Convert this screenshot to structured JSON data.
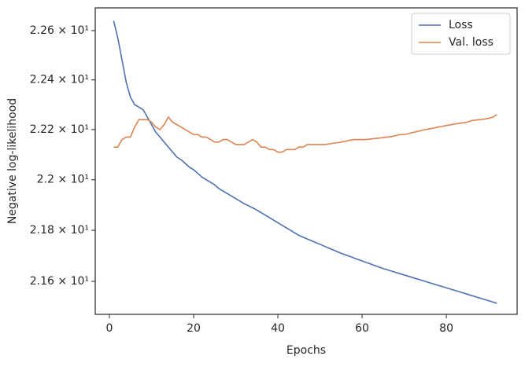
{
  "chart_data": {
    "type": "line",
    "xlabel": "Epochs",
    "ylabel": "Negative log-likelihood",
    "yscale": "log",
    "legend": "upper right",
    "grid": false,
    "x": [
      1,
      2,
      3,
      4,
      5,
      6,
      7,
      8,
      9,
      10,
      11,
      12,
      13,
      14,
      15,
      16,
      17,
      18,
      19,
      20,
      21,
      22,
      23,
      24,
      25,
      26,
      27,
      28,
      29,
      30,
      31,
      32,
      33,
      34,
      35,
      36,
      37,
      38,
      39,
      40,
      41,
      42,
      43,
      44,
      45,
      46,
      47,
      48,
      49,
      50,
      51,
      52,
      53,
      54,
      55,
      56,
      57,
      58,
      59,
      60,
      61,
      62,
      63,
      64,
      65,
      66,
      67,
      68,
      69,
      70,
      71,
      72,
      73,
      74,
      75,
      76,
      77,
      78,
      79,
      80,
      81,
      82,
      83,
      84,
      85,
      86,
      87,
      88,
      89,
      90,
      91,
      92
    ],
    "series": [
      {
        "name": "Loss",
        "color": "#4c72b0",
        "values": [
          22.64,
          22.57,
          22.48,
          22.39,
          22.33,
          22.3,
          22.29,
          22.28,
          22.25,
          22.22,
          22.19,
          22.17,
          22.15,
          22.13,
          22.11,
          22.09,
          22.08,
          22.065,
          22.05,
          22.04,
          22.025,
          22.01,
          22.0,
          21.99,
          21.98,
          21.965,
          21.955,
          21.945,
          21.935,
          21.925,
          21.915,
          21.905,
          21.897,
          21.889,
          21.88,
          21.87,
          21.86,
          21.85,
          21.84,
          21.83,
          21.82,
          21.81,
          21.8,
          21.79,
          21.78,
          21.773,
          21.766,
          21.759,
          21.752,
          21.745,
          21.738,
          21.731,
          21.724,
          21.717,
          21.71,
          21.704,
          21.698,
          21.692,
          21.686,
          21.68,
          21.674,
          21.668,
          21.662,
          21.656,
          21.65,
          21.645,
          21.64,
          21.635,
          21.63,
          21.625,
          21.62,
          21.615,
          21.61,
          21.605,
          21.6,
          21.595,
          21.59,
          21.585,
          21.58,
          21.575,
          21.57,
          21.565,
          21.56,
          21.555,
          21.55,
          21.545,
          21.54,
          21.535,
          21.53,
          21.525,
          21.52,
          21.515
        ]
      },
      {
        "name": "Val. loss",
        "color": "#dd8452",
        "values": [
          22.13,
          22.13,
          22.16,
          22.17,
          22.17,
          22.21,
          22.24,
          22.24,
          22.24,
          22.23,
          22.21,
          22.2,
          22.22,
          22.25,
          22.23,
          22.22,
          22.21,
          22.2,
          22.19,
          22.18,
          22.18,
          22.17,
          22.17,
          22.16,
          22.15,
          22.15,
          22.16,
          22.16,
          22.15,
          22.14,
          22.14,
          22.14,
          22.15,
          22.16,
          22.15,
          22.13,
          22.13,
          22.12,
          22.12,
          22.11,
          22.11,
          22.12,
          22.12,
          22.12,
          22.13,
          22.13,
          22.14,
          22.14,
          22.14,
          22.14,
          22.14,
          22.142,
          22.145,
          22.147,
          22.15,
          22.153,
          22.157,
          22.16,
          22.16,
          22.16,
          22.16,
          22.162,
          22.164,
          22.166,
          22.168,
          22.17,
          22.172,
          22.176,
          22.18,
          22.18,
          22.184,
          22.188,
          22.192,
          22.196,
          22.2,
          22.203,
          22.206,
          22.21,
          22.213,
          22.216,
          22.219,
          22.222,
          22.225,
          22.227,
          22.23,
          22.236,
          22.238,
          22.24,
          22.242,
          22.245,
          22.25,
          22.26
        ]
      }
    ],
    "xlim": [
      -3.36,
      96.8
    ],
    "xticks": [
      0,
      20,
      40,
      60,
      80
    ],
    "ylim": [
      21.472,
      22.693
    ],
    "yticks": [
      {
        "value": 21.6,
        "label": "2.16 × 10¹"
      },
      {
        "value": 21.8,
        "label": "2.18 × 10¹"
      },
      {
        "value": 22.0,
        "label": "2.2 × 10¹"
      },
      {
        "value": 22.2,
        "label": "2.22 × 10¹"
      },
      {
        "value": 22.4,
        "label": "2.24 × 10¹"
      },
      {
        "value": 22.6,
        "label": "2.26 × 10¹"
      }
    ]
  }
}
